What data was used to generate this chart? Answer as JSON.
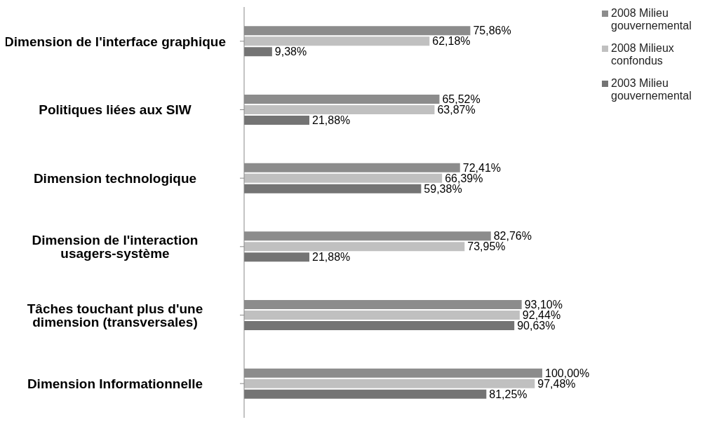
{
  "chart_data": {
    "type": "bar",
    "orientation": "horizontal",
    "legend": "top right",
    "grid": false,
    "categories": [
      "Dimension de l'interface graphique",
      "Politiques liées aux SIW",
      "Dimension technologique",
      "Dimension de l'interaction usagers-système",
      "Tâches touchant plus d'une dimension (transversales)",
      "Dimension Informationnelle"
    ],
    "series": [
      {
        "name": "2008 Milieu gouvernemental",
        "color": "#8c8c8c",
        "values": [
          75.86,
          65.52,
          72.41,
          82.76,
          93.1,
          100.0
        ],
        "value_labels": [
          "75,86%",
          "65,52%",
          "72,41%",
          "82,76%",
          "93,10%",
          "100,00%"
        ]
      },
      {
        "name": "2008 Milieux confondus",
        "color": "#c0c0c0",
        "values": [
          62.18,
          63.87,
          66.39,
          73.95,
          92.44,
          97.48
        ],
        "value_labels": [
          "62,18%",
          "63,87%",
          "66,39%",
          "73,95%",
          "92,44%",
          "97,48%"
        ]
      },
      {
        "name": "2003 Milieu gouvernemental",
        "color": "#747474",
        "values": [
          9.38,
          21.88,
          59.38,
          21.88,
          90.63,
          81.25
        ],
        "value_labels": [
          "9,38%",
          "21,88%",
          "59,38%",
          "21,88%",
          "90,63%",
          "81,25%"
        ]
      }
    ]
  }
}
